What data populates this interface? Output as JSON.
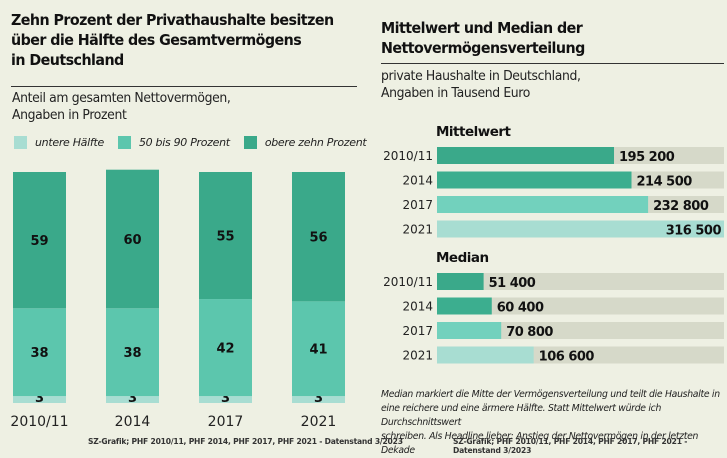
{
  "colors": {
    "bottom_half": "#a8ddd2",
    "middle_40": "#5cc6ad",
    "top_10": "#3aa98a",
    "mean_2010": "#3aa98a",
    "mean_2014": "#3cae8f",
    "mean_2017": "#72d1bd",
    "mean_2021": "#a8ddd2",
    "track": "#d6d9c9",
    "background": "#eef0e3"
  },
  "left": {
    "title_lines": [
      "Zehn Prozent der Privathaushalte besitzen",
      "über die Hälfte des Gesamtvermögens",
      "in Deutschland"
    ],
    "subtitle_lines": [
      "Anteil am gesamten Nettovermögen,",
      "Angaben in Prozent"
    ],
    "legend": [
      "untere Hälfte",
      "50 bis 90 Prozent",
      "obere zehn Prozent"
    ],
    "source": "SZ-Grafik; PHF 2010/11, PHF 2014, PHF 2017, PHF 2021 - Datenstand 3/2023"
  },
  "right": {
    "title_lines": [
      "Mittelwert und Median der",
      "Nettovermögensverteilung"
    ],
    "subtitle_lines": [
      "private Haushalte in Deutschland,",
      "Angaben in Tausend Euro"
    ],
    "section_mean": "Mittelwert",
    "section_median": "Median",
    "note_lines": [
      "Median markiert die Mitte der Vermögensverteilung und teilt die Haushalte in",
      "eine reichere und eine ärmere Hälfte. Statt Mittelwert würde ich Durchschnittswert",
      "schreiben. Als Headline lieber: Anstieg der Nettovermögen in der letzten Dekade"
    ],
    "source": "SZ-Grafik; PHF 2010/11, PHF 2014, PHF 2017, PHF 2021 - Datenstand 3/2023"
  },
  "chart_data": [
    {
      "type": "bar",
      "stacked": true,
      "orientation": "vertical",
      "title": "Zehn Prozent der Privathaushalte besitzen über die Hälfte des Gesamtvermögens in Deutschland",
      "subtitle": "Anteil am gesamten Nettovermögen, Angaben in Prozent",
      "categories": [
        "2010/11",
        "2014",
        "2017",
        "2021"
      ],
      "series": [
        {
          "name": "untere Hälfte",
          "values": [
            3,
            3,
            3,
            3
          ]
        },
        {
          "name": "50 bis 90 Prozent",
          "values": [
            38,
            38,
            42,
            41
          ]
        },
        {
          "name": "obere zehn Prozent",
          "values": [
            59,
            60,
            55,
            56
          ]
        }
      ],
      "ylim": [
        0,
        100
      ],
      "legend": "top-left",
      "grid": false
    },
    {
      "type": "bar",
      "orientation": "horizontal",
      "title": "Mittelwert",
      "categories": [
        "2010/11",
        "2014",
        "2017",
        "2021"
      ],
      "values": [
        195200,
        214500,
        232800,
        316500
      ],
      "labels": [
        "195 200",
        "214 500",
        "232 800",
        "316 500"
      ],
      "xlim": [
        0,
        316500
      ]
    },
    {
      "type": "bar",
      "orientation": "horizontal",
      "title": "Median",
      "categories": [
        "2010/11",
        "2014",
        "2017",
        "2021"
      ],
      "values": [
        51400,
        60400,
        70800,
        106600
      ],
      "labels": [
        "51 400",
        "60 400",
        "70 800",
        "106 600"
      ],
      "xlim": [
        0,
        316500
      ]
    }
  ]
}
